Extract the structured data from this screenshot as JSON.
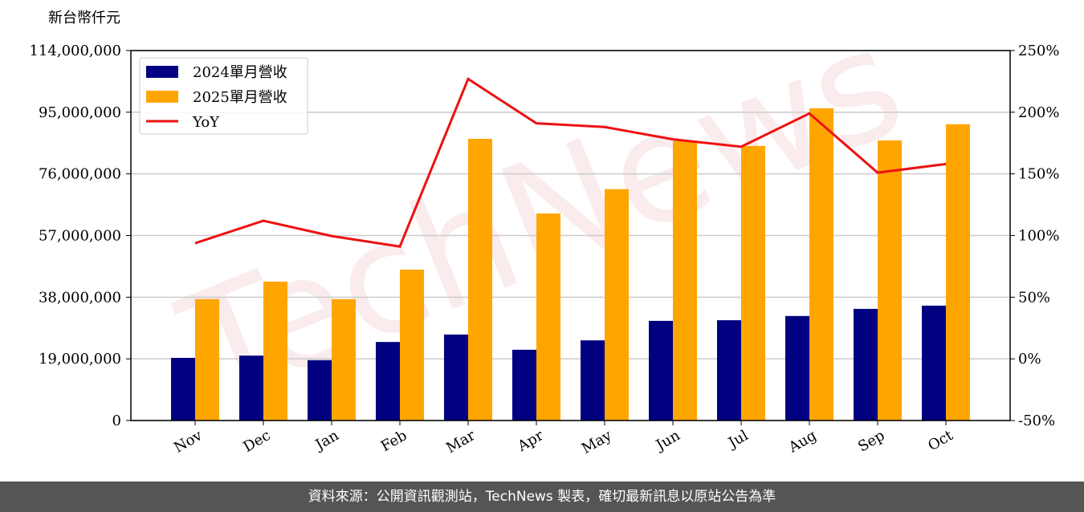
{
  "chart_data": {
    "type": "bar_line",
    "y_label": "新台幣仟元",
    "watermark": "TechNews",
    "categories": [
      "Nov",
      "Dec",
      "Jan",
      "Feb",
      "Mar",
      "Apr",
      "May",
      "Jun",
      "Jul",
      "Aug",
      "Sep",
      "Oct"
    ],
    "series": [
      {
        "name": "2024單月營收",
        "color": "#000080",
        "type": "bar",
        "values": [
          19300000,
          20000000,
          18600000,
          24200000,
          26500000,
          21800000,
          24700000,
          30700000,
          30900000,
          32200000,
          34400000,
          35400000
        ]
      },
      {
        "name": "2025單月營收",
        "color": "#ffa500",
        "type": "bar",
        "values": [
          37400000,
          42800000,
          37400000,
          46500000,
          86800000,
          63800000,
          71300000,
          86100000,
          84600000,
          96200000,
          86300000,
          91300000
        ]
      },
      {
        "name": "YoY",
        "color": "#ee1111",
        "type": "line",
        "axis": "y2",
        "values": [
          93.8,
          112,
          99.6,
          91.1,
          227,
          191,
          188,
          178,
          172,
          199,
          151,
          158
        ]
      }
    ],
    "ylim": [
      0,
      114000000
    ],
    "yticks": [
      0,
      {
        "value": 19000000,
        "label": "19,000,000"
      },
      {
        "value": 38000000,
        "label": "38,000,000"
      },
      {
        "value": 57000000,
        "label": "57,000,000"
      },
      {
        "value": 76000000,
        "label": "76,000,000"
      },
      {
        "value": 95000000,
        "label": "95,000,000"
      },
      {
        "value": 114000000,
        "label": "114,000,000"
      }
    ],
    "y2lim": [
      -50,
      250
    ],
    "y2ticks": [
      {
        "value": -50,
        "label": "-50%"
      },
      {
        "value": 0,
        "label": "0%"
      },
      {
        "value": 50,
        "label": "50%"
      },
      {
        "value": 100,
        "label": "100%"
      },
      {
        "value": 150,
        "label": "150%"
      },
      {
        "value": 200,
        "label": "200%"
      },
      {
        "value": 250,
        "label": "250%"
      }
    ],
    "grid": true,
    "legend": "upper left",
    "footer": "資料來源：公開資訊觀測站，TechNews 製表，確切最新訊息以原站公告為準"
  }
}
